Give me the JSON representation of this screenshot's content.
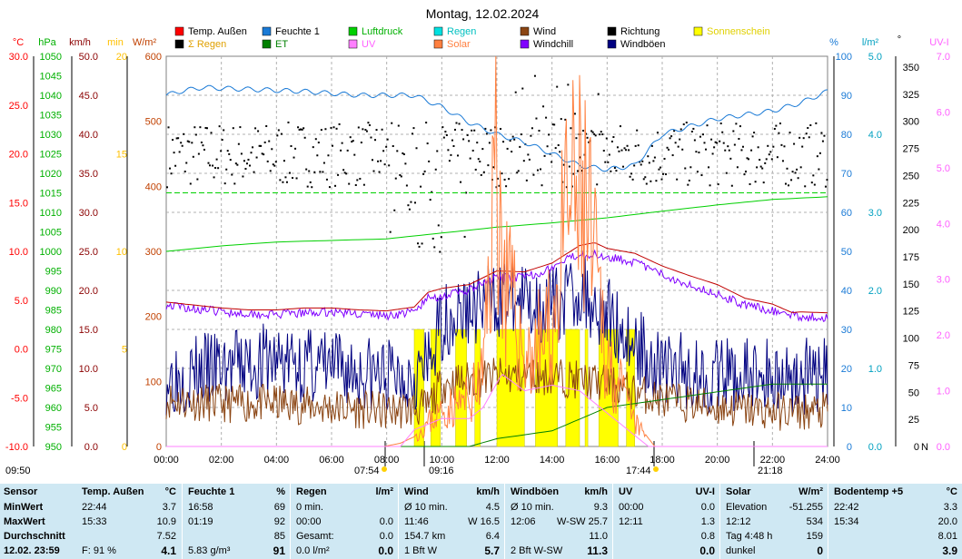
{
  "title": "Montag, 12.02.2024",
  "legend": [
    {
      "label": "Temp. Außen",
      "color": "#ff0000",
      "text_color": "#000000"
    },
    {
      "label": "Feuchte 1",
      "color": "#1a7ad6",
      "text_color": "#000000"
    },
    {
      "label": "Luftdruck",
      "color": "#00d000",
      "text_color": "#00b000"
    },
    {
      "label": "Regen",
      "color": "#00e0e0",
      "text_color": "#00c0c0"
    },
    {
      "label": "Wind",
      "color": "#8b4513",
      "text_color": "#000000"
    },
    {
      "label": "Richtung",
      "color": "#000000",
      "text_color": "#000000"
    },
    {
      "label": "Sonnenschein",
      "color": "#ffff00",
      "text_color": "#e0d000"
    },
    {
      "label": "Σ Regen",
      "color": "#000000",
      "text_color": "#e0a000"
    },
    {
      "label": "ET",
      "color": "#008000",
      "text_color": "#008000"
    },
    {
      "label": "UV",
      "color": "#ff80ff",
      "text_color": "#ff60ff"
    },
    {
      "label": "Solar",
      "color": "#ff8040",
      "text_color": "#ff8040"
    },
    {
      "label": "Windchill",
      "color": "#8000ff",
      "text_color": "#000000"
    },
    {
      "label": "Windböen",
      "color": "#000080",
      "text_color": "#000000"
    }
  ],
  "axes": {
    "temp": {
      "unit": "°C",
      "ticks": [
        "30.0",
        "25.0",
        "20.0",
        "15.0",
        "10.0",
        "5.0",
        "0.0",
        "-5.0",
        "-10.0"
      ],
      "color": "#ff0000"
    },
    "pressure": {
      "unit": "hPa",
      "ticks": [
        "1050",
        "1045",
        "1040",
        "1035",
        "1030",
        "1025",
        "1020",
        "1015",
        "1010",
        "1005",
        "1000",
        "995",
        "990",
        "985",
        "980",
        "975",
        "970",
        "965",
        "960",
        "955",
        "950"
      ],
      "color": "#00b000"
    },
    "wind": {
      "unit": "km/h",
      "ticks": [
        "50.0",
        "45.0",
        "40.0",
        "35.0",
        "30.0",
        "25.0",
        "20.0",
        "15.0",
        "10.0",
        "5.0",
        "0.0"
      ],
      "color": "#8b0000"
    },
    "minutes": {
      "unit": "min",
      "ticks": [
        "20",
        "15",
        "10",
        "5",
        "0"
      ],
      "color": "#ffc000"
    },
    "solar": {
      "unit": "W/m²",
      "ticks": [
        "600",
        "500",
        "400",
        "300",
        "200",
        "100",
        "0"
      ],
      "color": "#c04000"
    },
    "humidity": {
      "unit": "%",
      "ticks": [
        "100",
        "90",
        "80",
        "70",
        "60",
        "50",
        "40",
        "30",
        "20",
        "10",
        "0"
      ],
      "color": "#1a7ad6"
    },
    "rain": {
      "unit": "l/m²",
      "ticks": [
        "5.0",
        "4.0",
        "3.0",
        "2.0",
        "1.0",
        "0.0"
      ],
      "color": "#00a0c0"
    },
    "direction": {
      "unit": "°",
      "ticks": [
        "350",
        "325",
        "300",
        "275",
        "250",
        "225",
        "200",
        "175",
        "150",
        "125",
        "100",
        "75",
        "50",
        "25",
        "0"
      ],
      "n_label": "N",
      "color": "#000000"
    },
    "uv": {
      "unit": "UV-I",
      "ticks": [
        "7.0",
        "6.0",
        "5.0",
        "4.0",
        "3.0",
        "2.0",
        "1.0",
        "0.0"
      ],
      "color": "#ff60ff"
    }
  },
  "x_ticks": [
    "00:00",
    "02:00",
    "04:00",
    "06:00",
    "08:00",
    "10:00",
    "12:00",
    "14:00",
    "16:00",
    "18:00",
    "20:00",
    "22:00",
    "24:00"
  ],
  "markers": {
    "left": "09:50",
    "sunrise": "07:54",
    "m2": "09:16",
    "sunset": "17:44",
    "m4": "21:18"
  },
  "chart_data": {
    "type": "line",
    "title": "Montag, 12.02.2024",
    "x_range_hours": [
      0,
      24
    ],
    "series": [
      {
        "name": "Temp. Außen",
        "unit": "°C",
        "points": [
          [
            0,
            4.8
          ],
          [
            1,
            4.5
          ],
          [
            2,
            4.2
          ],
          [
            3,
            4.0
          ],
          [
            4,
            4.0
          ],
          [
            5,
            4.2
          ],
          [
            6,
            4.2
          ],
          [
            7,
            4.0
          ],
          [
            8,
            3.9
          ],
          [
            9,
            4.3
          ],
          [
            9.5,
            5.8
          ],
          [
            10,
            6.2
          ],
          [
            11,
            6.6
          ],
          [
            12,
            8.0
          ],
          [
            13,
            7.9
          ],
          [
            14,
            8.8
          ],
          [
            15,
            10.6
          ],
          [
            15.55,
            10.9
          ],
          [
            16,
            10.3
          ],
          [
            17,
            9.8
          ],
          [
            18,
            8.5
          ],
          [
            19,
            7.5
          ],
          [
            20,
            6.6
          ],
          [
            21,
            5.2
          ],
          [
            22,
            4.6
          ],
          [
            22.73,
            3.7
          ],
          [
            23,
            3.8
          ],
          [
            24,
            3.7
          ]
        ]
      },
      {
        "name": "Windchill",
        "unit": "°C",
        "points": [
          [
            0,
            4.5
          ],
          [
            2,
            3.8
          ],
          [
            4,
            3.5
          ],
          [
            6,
            3.8
          ],
          [
            8,
            3.4
          ],
          [
            9,
            3.8
          ],
          [
            9.5,
            5.2
          ],
          [
            10,
            5.4
          ],
          [
            11,
            6.0
          ],
          [
            12,
            7.3
          ],
          [
            13,
            7.3
          ],
          [
            14,
            8.3
          ],
          [
            15,
            9.8
          ],
          [
            16,
            9.5
          ],
          [
            17,
            8.9
          ],
          [
            18,
            7.6
          ],
          [
            19,
            6.6
          ],
          [
            20,
            5.6
          ],
          [
            21,
            4.5
          ],
          [
            22,
            3.9
          ],
          [
            23,
            3.3
          ],
          [
            24,
            3.2
          ]
        ]
      },
      {
        "name": "Feuchte 1",
        "unit": "%",
        "points": [
          [
            0,
            90
          ],
          [
            0.5,
            91
          ],
          [
            1.3,
            92
          ],
          [
            5,
            91
          ],
          [
            7,
            90
          ],
          [
            8,
            90
          ],
          [
            9,
            90
          ],
          [
            10,
            87
          ],
          [
            11,
            83
          ],
          [
            12,
            80
          ],
          [
            13,
            78
          ],
          [
            14,
            75
          ],
          [
            15,
            72
          ],
          [
            16,
            71
          ],
          [
            17,
            72
          ],
          [
            18,
            80
          ],
          [
            19,
            82
          ],
          [
            20,
            84
          ],
          [
            21,
            85
          ],
          [
            22,
            86
          ],
          [
            23,
            88
          ],
          [
            24,
            91
          ]
        ]
      },
      {
        "name": "Luftdruck",
        "unit": "hPa",
        "points": [
          [
            0,
            1000
          ],
          [
            2,
            1001.4
          ],
          [
            4,
            1002.4
          ],
          [
            6,
            1002.8
          ],
          [
            8,
            1003.2
          ],
          [
            10,
            1004.7
          ],
          [
            12,
            1006.2
          ],
          [
            14,
            1007.3
          ],
          [
            16,
            1008.6
          ],
          [
            18,
            1010.3
          ],
          [
            20,
            1011.9
          ],
          [
            22,
            1013.3
          ],
          [
            24,
            1014
          ]
        ]
      },
      {
        "name": "Wind",
        "unit": "km/h",
        "avg_points": [
          [
            0,
            6
          ],
          [
            2,
            5.5
          ],
          [
            4,
            5.5
          ],
          [
            6,
            5
          ],
          [
            8,
            4.5
          ],
          [
            9.5,
            5
          ],
          [
            10,
            8
          ],
          [
            12,
            9
          ],
          [
            14,
            9
          ],
          [
            16,
            8
          ],
          [
            17,
            7
          ],
          [
            18,
            6
          ],
          [
            20,
            5
          ],
          [
            22,
            4.5
          ],
          [
            24,
            4.5
          ]
        ],
        "max": 16.5,
        "avg_10min": 4.5
      },
      {
        "name": "Windböen",
        "unit": "km/h",
        "avg_points": [
          [
            0,
            9
          ],
          [
            2,
            10
          ],
          [
            4,
            11
          ],
          [
            6,
            10
          ],
          [
            8,
            9
          ],
          [
            9.5,
            10
          ],
          [
            10,
            16
          ],
          [
            12,
            19
          ],
          [
            14,
            18
          ],
          [
            15,
            20
          ],
          [
            16,
            17
          ],
          [
            17,
            13
          ],
          [
            18,
            10
          ],
          [
            20,
            9
          ],
          [
            22,
            9
          ],
          [
            24,
            9
          ]
        ],
        "max": 25.7,
        "avg_10min": 9.3
      },
      {
        "name": "Solar",
        "unit": "W/m²",
        "points": [
          [
            0,
            0
          ],
          [
            7.9,
            0
          ],
          [
            8.5,
            5
          ],
          [
            9,
            15
          ],
          [
            9.5,
            40
          ],
          [
            10,
            60
          ],
          [
            11,
            80
          ],
          [
            11.5,
            120
          ],
          [
            12,
            530
          ],
          [
            12.2,
            300
          ],
          [
            13,
            150
          ],
          [
            14,
            200
          ],
          [
            14.6,
            410
          ],
          [
            15.2,
            410
          ],
          [
            16,
            150
          ],
          [
            17,
            40
          ],
          [
            17.73,
            0
          ],
          [
            24,
            0
          ]
        ],
        "max": 534
      },
      {
        "name": "UV",
        "unit": "UV-I",
        "points": [
          [
            0,
            0
          ],
          [
            8.5,
            0
          ],
          [
            9,
            0.3
          ],
          [
            10,
            0.5
          ],
          [
            11,
            0.5
          ],
          [
            11.5,
            0.7
          ],
          [
            12.18,
            1.3
          ],
          [
            13,
            1.0
          ],
          [
            14,
            1.1
          ],
          [
            15,
            1.0
          ],
          [
            16,
            0.6
          ],
          [
            17,
            0.2
          ],
          [
            17.5,
            0
          ],
          [
            24,
            0
          ]
        ],
        "max": 1.3
      },
      {
        "name": "ET",
        "unit": "l/m²",
        "points": [
          [
            0,
            0
          ],
          [
            11,
            0
          ],
          [
            12,
            0.1
          ],
          [
            14,
            0.2
          ],
          [
            16,
            0.5
          ],
          [
            18,
            0.6
          ],
          [
            20,
            0.7
          ],
          [
            22,
            0.8
          ],
          [
            24,
            0.8
          ]
        ]
      },
      {
        "name": "Regen",
        "unit": "l/m²",
        "points": [
          [
            0,
            0
          ],
          [
            24,
            0
          ]
        ]
      },
      {
        "name": "Richtung",
        "unit": "°",
        "kind": "scatter",
        "typical_range": [
          200,
          310
        ],
        "avg": 270
      },
      {
        "name": "Sonnenschein",
        "unit": "min",
        "kind": "bar",
        "intervals": [
          [
            9.0,
            9.35
          ],
          [
            9.6,
            9.95
          ],
          [
            10.5,
            10.9
          ],
          [
            11.2,
            11.4
          ],
          [
            12.0,
            13.0
          ],
          [
            13.4,
            14.2
          ],
          [
            14.5,
            15.0
          ],
          [
            15.2,
            15.3
          ],
          [
            15.7,
            16.4
          ],
          [
            16.7,
            17.0
          ]
        ],
        "total": "4:48 h"
      }
    ]
  },
  "table": {
    "row_labels": [
      "Sensor",
      "MinWert",
      "MaxWert",
      "Durchschnitt",
      "12.02. 23:59"
    ],
    "columns": [
      {
        "header": "Temp. Außen",
        "unit": "°C",
        "rows": [
          [
            "22:44",
            "3.7"
          ],
          [
            "15:33",
            "10.9"
          ],
          [
            "",
            "7.52"
          ],
          [
            "F: 91 %",
            "4.1"
          ]
        ]
      },
      {
        "header": "Feuchte 1",
        "unit": "%",
        "rows": [
          [
            "16:58",
            "69"
          ],
          [
            "01:19",
            "92"
          ],
          [
            "",
            "85"
          ],
          [
            "5.83 g/m³",
            "91"
          ]
        ]
      },
      {
        "header": "Regen",
        "unit": "l/m²",
        "rows": [
          [
            "0 min.",
            ""
          ],
          [
            "00:00",
            "0.0"
          ],
          [
            "Gesamt:",
            "0.0"
          ],
          [
            "0.0 l/m²",
            "0.0"
          ]
        ]
      },
      {
        "header": "Wind",
        "unit": "km/h",
        "rows": [
          [
            "Ø 10 min.",
            "4.5"
          ],
          [
            "11:46",
            "W 16.5"
          ],
          [
            "154.7 km",
            "6.4"
          ],
          [
            "1 Bft W",
            "5.7"
          ]
        ]
      },
      {
        "header": "Windböen",
        "unit": "km/h",
        "rows": [
          [
            "Ø 10 min.",
            "9.3"
          ],
          [
            "12:06",
            "W-SW 25.7"
          ],
          [
            "",
            "11.0"
          ],
          [
            "2 Bft W-SW",
            "11.3"
          ]
        ]
      },
      {
        "header": "UV",
        "unit": "UV-I",
        "rows": [
          [
            "00:00",
            "0.0"
          ],
          [
            "12:11",
            "1.3"
          ],
          [
            "",
            "0.8"
          ],
          [
            "",
            "0.0"
          ]
        ]
      },
      {
        "header": "Solar",
        "unit": "W/m²",
        "rows": [
          [
            "Elevation",
            "-51.255"
          ],
          [
            "12:12",
            "534"
          ],
          [
            "Tag 4:48 h",
            "159"
          ],
          [
            "dunkel",
            "0"
          ]
        ]
      },
      {
        "header": "Bodentemp +5",
        "unit": "°C",
        "rows": [
          [
            "22:42",
            "3.3"
          ],
          [
            "15:34",
            "20.0"
          ],
          [
            "",
            "8.01"
          ],
          [
            "",
            "3.9"
          ]
        ]
      }
    ]
  }
}
